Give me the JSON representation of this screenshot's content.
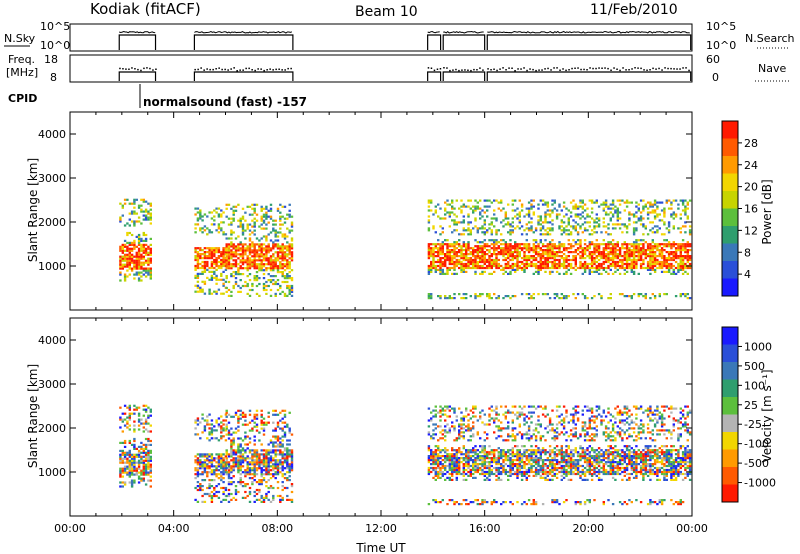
{
  "header": {
    "station": "Kodiak (fitACF)",
    "beam": "Beam 10",
    "date": "11/Feb/2010"
  },
  "scan_panel": {
    "left_label": "N.Sky",
    "right_label": "N.Search",
    "left_ticks": [
      "10^5",
      "10^0"
    ],
    "right_ticks": [
      "10^5",
      "10^0"
    ]
  },
  "freq_panel": {
    "left_label_1": "Freq.",
    "left_label_2": "[MHz]",
    "left_ticks": [
      "18",
      "8"
    ],
    "right_label": "Nave",
    "right_ticks": [
      "60",
      "0"
    ]
  },
  "cpid": {
    "label": "CPID",
    "mode_text": "normalsound (fast) -157"
  },
  "colors": {
    "power": [
      "#1a1aff",
      "#2a4fd8",
      "#3a78b8",
      "#2f9e6e",
      "#5cbf3c",
      "#c7d400",
      "#f2d600",
      "#ff9a00",
      "#ff5a00",
      "#ff1a00"
    ],
    "velocity": [
      "#1a1aff",
      "#2a4fd8",
      "#3a78b8",
      "#2f9e6e",
      "#5cbf3c",
      "#b4b4b4",
      "#f2d600",
      "#ff9a00",
      "#ff5a00",
      "#ff1a00"
    ]
  },
  "chart_data": [
    {
      "type": "heatmap",
      "name": "power",
      "xlabel": "Time UT",
      "ylabel": "Slant Range [km]",
      "xlim_hours": [
        0,
        24
      ],
      "ylim_km": [
        0,
        4500
      ],
      "x_ticks": [
        "00:00",
        "04:00",
        "08:00",
        "12:00",
        "16:00",
        "20:00",
        "00:00"
      ],
      "y_ticks": [
        1000,
        2000,
        3000,
        4000
      ],
      "colorbar_label": "Power [dB]",
      "colorbar_ticks": [
        "28",
        "24",
        "20",
        "16",
        "12",
        "8",
        "4"
      ],
      "bands": [
        {
          "t0": 1.9,
          "t1": 3.1,
          "r0": 650,
          "r1": 1750
        },
        {
          "t0": 1.9,
          "t1": 3.1,
          "r0": 1900,
          "r1": 2500
        },
        {
          "t0": 4.8,
          "t1": 6.0,
          "r0": 350,
          "r1": 1400
        },
        {
          "t0": 4.8,
          "t1": 6.0,
          "r0": 1700,
          "r1": 2300
        },
        {
          "t0": 6.0,
          "t1": 8.6,
          "r0": 300,
          "r1": 2400
        },
        {
          "t0": 13.8,
          "t1": 23.9,
          "r0": 800,
          "r1": 1600
        },
        {
          "t0": 13.8,
          "t1": 23.9,
          "r0": 1700,
          "r1": 2500
        },
        {
          "t0": 13.8,
          "t1": 23.9,
          "r0": 250,
          "r1": 350
        }
      ]
    },
    {
      "type": "heatmap",
      "name": "velocity",
      "xlabel": "Time UT",
      "ylabel": "Slant Range [km]",
      "xlim_hours": [
        0,
        24
      ],
      "ylim_km": [
        0,
        4500
      ],
      "x_ticks": [
        "00:00",
        "04:00",
        "08:00",
        "12:00",
        "16:00",
        "20:00",
        "00:00"
      ],
      "y_ticks": [
        1000,
        2000,
        3000,
        4000
      ],
      "colorbar_label": "Velocity [m s⁻¹]",
      "colorbar_ticks": [
        "1000",
        "500",
        "100",
        "25",
        "-25",
        "-100",
        "-500",
        "-1000"
      ],
      "bands": [
        {
          "t0": 1.9,
          "t1": 3.1,
          "r0": 650,
          "r1": 1750
        },
        {
          "t0": 1.9,
          "t1": 3.1,
          "r0": 1900,
          "r1": 2500
        },
        {
          "t0": 4.8,
          "t1": 6.0,
          "r0": 300,
          "r1": 1400
        },
        {
          "t0": 4.8,
          "t1": 6.0,
          "r0": 1700,
          "r1": 2300
        },
        {
          "t0": 6.0,
          "t1": 8.6,
          "r0": 300,
          "r1": 2400
        },
        {
          "t0": 13.8,
          "t1": 23.9,
          "r0": 800,
          "r1": 1600
        },
        {
          "t0": 13.8,
          "t1": 23.9,
          "r0": 1700,
          "r1": 2500
        },
        {
          "t0": 13.8,
          "t1": 23.9,
          "r0": 250,
          "r1": 350
        }
      ]
    }
  ],
  "operation_intervals_hours": [
    [
      1.9,
      3.3
    ],
    [
      4.8,
      8.6
    ],
    [
      13.8,
      14.3
    ],
    [
      14.4,
      16.0
    ],
    [
      16.1,
      23.95
    ]
  ]
}
